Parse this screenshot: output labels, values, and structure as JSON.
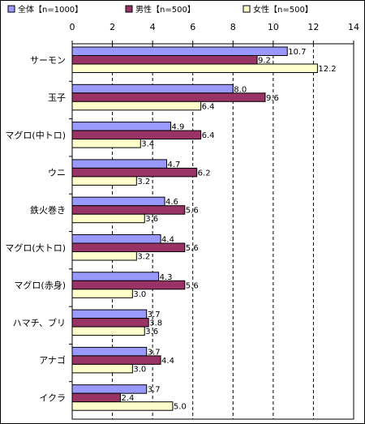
{
  "chart_data": {
    "type": "bar",
    "orientation": "horizontal",
    "categories": [
      "サーモン",
      "玉子",
      "マグロ(中トロ)",
      "ウニ",
      "鉄火巻き",
      "マグロ(大トロ)",
      "マグロ(赤身)",
      "ハマチ、ブリ",
      "アナゴ",
      "イクラ"
    ],
    "series": [
      {
        "name": "全体【n=1000】",
        "color": "#9999ff",
        "values": [
          10.7,
          8.0,
          4.9,
          4.7,
          4.6,
          4.4,
          4.3,
          3.7,
          3.7,
          3.7
        ]
      },
      {
        "name": "男性【n=500】",
        "color": "#993366",
        "values": [
          9.2,
          9.6,
          6.4,
          6.2,
          5.6,
          5.6,
          5.6,
          3.8,
          4.4,
          2.4
        ]
      },
      {
        "name": "女性【n=500】",
        "color": "#ffffcc",
        "values": [
          12.2,
          6.4,
          3.4,
          3.2,
          3.6,
          3.2,
          3.0,
          3.6,
          3.0,
          5.0
        ]
      }
    ],
    "value_labels": [
      [
        "10.7",
        "8.0",
        "4.9",
        "4.7",
        "4.6",
        "4.4",
        "4.3",
        "3.7",
        "3.7",
        "3.7"
      ],
      [
        "9.2",
        "9.6",
        "6.4",
        "6.2",
        "5.6",
        "5.6",
        "5.6",
        "3.8",
        "4.4",
        "2.4"
      ],
      [
        "12.2",
        "6.4",
        "3.4",
        "3.2",
        "3.6",
        "3.2",
        "3.0",
        "3.6",
        "3.0",
        "5.0"
      ]
    ],
    "xlim": [
      0,
      14
    ],
    "xticks": [
      "0",
      "2",
      "4",
      "6",
      "8",
      "10",
      "12",
      "14"
    ],
    "grid": "dashed-vertical",
    "legend_position": "top"
  }
}
